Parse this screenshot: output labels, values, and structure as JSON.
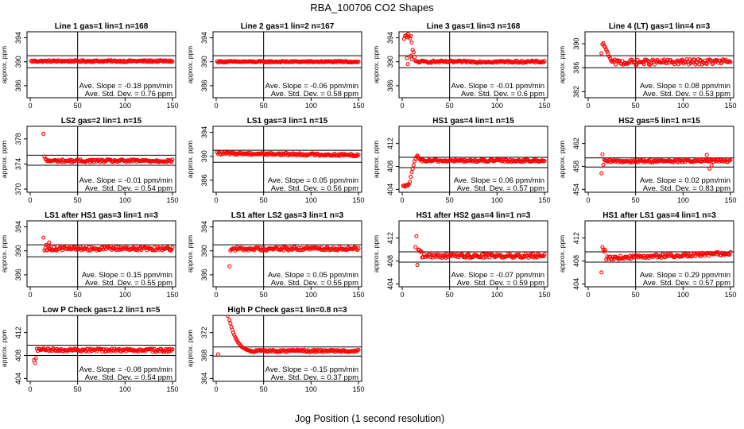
{
  "figure": {
    "title": "RBA_100706  CO2 Shapes",
    "xlabel": "Jog Position (1 second resolution)"
  },
  "chart_data": [
    {
      "type": "scatter",
      "title": "Line 1 gas=1 lin=1 n=168",
      "ylabel": "approx. ppm",
      "xlim": [
        0,
        150
      ],
      "ylim": [
        384,
        395
      ],
      "xticks": [
        0,
        50,
        100,
        150
      ],
      "yticks": [
        386,
        390,
        394
      ],
      "vline": 50,
      "hlines": [
        391,
        389
      ],
      "slope_text": "Ave. Slope = -0.18 ppm/min",
      "sd_text": "Ave. Std. Dev. = 0.76 ppm",
      "series": [
        {
          "segments": [
            {
              "x0": 1,
              "x1": 150,
              "y0": 390.1,
              "y1": 390.1,
              "noise": 0.15
            }
          ]
        }
      ]
    },
    {
      "type": "scatter",
      "title": "Line 2 gas=1 lin=2 n=167",
      "ylabel": "approx. ppm",
      "xlim": [
        0,
        150
      ],
      "ylim": [
        384,
        395
      ],
      "xticks": [
        0,
        50,
        100,
        150
      ],
      "yticks": [
        386,
        390,
        394
      ],
      "vline": 50,
      "hlines": [
        391,
        389
      ],
      "slope_text": "Ave. Slope = -0.06 ppm/min",
      "sd_text": "Ave. Std. Dev. = 0.58 ppm",
      "series": [
        {
          "segments": [
            {
              "x0": 1,
              "x1": 150,
              "y0": 390.0,
              "y1": 390.0,
              "noise": 0.12
            }
          ]
        }
      ]
    },
    {
      "type": "scatter",
      "title": "Line 3 gas=1 lin=3 n=168",
      "ylabel": "approx. ppm",
      "xlim": [
        0,
        150
      ],
      "ylim": [
        384,
        395
      ],
      "xticks": [
        0,
        50,
        100,
        150
      ],
      "yticks": [
        386,
        390,
        394
      ],
      "vline": 50,
      "hlines": [
        391,
        389
      ],
      "slope_text": "Ave. Slope = -0.01 ppm/min",
      "sd_text": "Ave. Std. Dev. = 0.6 ppm",
      "series": [
        {
          "points": [
            [
              2,
              393.8
            ],
            [
              3,
              394.3
            ],
            [
              4,
              394.4
            ],
            [
              5,
              394.1
            ],
            [
              6,
              394.6
            ],
            [
              7,
              394.2
            ],
            [
              8,
              393.9
            ],
            [
              9,
              394.3
            ],
            [
              10,
              393.2
            ],
            [
              11,
              392.0
            ],
            [
              5,
              390.6
            ],
            [
              6,
              389.6
            ],
            [
              9,
              391.0
            ],
            [
              10,
              390.4
            ],
            [
              12,
              391.6
            ],
            [
              13,
              390.8
            ]
          ],
          "segments": [
            {
              "x0": 14,
              "x1": 150,
              "y0": 390.0,
              "y1": 390.0,
              "noise": 0.18
            }
          ]
        }
      ]
    },
    {
      "type": "scatter",
      "title": "Line 4 (LT) gas=1 lin=4 n=3",
      "ylabel": "approx. ppm",
      "xlim": [
        0,
        150
      ],
      "ylim": [
        381,
        392
      ],
      "xticks": [
        0,
        50,
        100,
        150
      ],
      "yticks": [
        382,
        386,
        390
      ],
      "vline": 50,
      "hlines": [
        388,
        386
      ],
      "slope_text": "Ave. Slope = 0.08 ppm/min",
      "sd_text": "Ave. Std. Dev. = 0.53 ppm",
      "series": [
        {
          "points": [
            [
              14,
              388.4
            ],
            [
              15,
              389.9
            ],
            [
              16,
              390.1
            ],
            [
              17,
              389.6
            ],
            [
              18,
              389.4
            ],
            [
              19,
              389.0
            ],
            [
              20,
              388.7
            ],
            [
              21,
              388.3
            ],
            [
              22,
              387.9
            ],
            [
              23,
              387.6
            ],
            [
              24,
              387.2
            ],
            [
              25,
              387.0
            ]
          ],
          "segments": [
            {
              "x0": 26,
              "x1": 150,
              "y0": 386.9,
              "y1": 387.0,
              "noise": 0.45
            }
          ]
        }
      ]
    },
    {
      "type": "scatter",
      "title": "LS2 gas=2 lin=1 n=15",
      "ylabel": "approx. ppm",
      "xlim": [
        0,
        150
      ],
      "ylim": [
        369.5,
        380
      ],
      "xticks": [
        0,
        50,
        100,
        150
      ],
      "yticks": [
        370,
        374,
        378
      ],
      "vline": 50,
      "hlines": [
        375.4,
        373.8
      ],
      "slope_text": "Ave. Slope = -0.01 ppm/min",
      "sd_text": "Ave. Std. Dev. = 0.54 ppm",
      "series": [
        {
          "points": [
            [
              14,
              378.8
            ],
            [
              15,
              375.2
            ],
            [
              16,
              374.8
            ]
          ],
          "segments": [
            {
              "x0": 17,
              "x1": 150,
              "y0": 374.5,
              "y1": 374.5,
              "noise": 0.22
            }
          ]
        }
      ]
    },
    {
      "type": "scatter",
      "title": "LS1 gas=3 lin=1 n=15",
      "ylabel": "approx. ppm",
      "xlim": [
        0,
        150
      ],
      "ylim": [
        384,
        395
      ],
      "xticks": [
        0,
        50,
        100,
        150
      ],
      "yticks": [
        386,
        390,
        394
      ],
      "vline": 50,
      "hlines": [
        391,
        389
      ],
      "slope_text": "Ave. Slope = 0.05 ppm/min",
      "sd_text": "Ave. Std. Dev. = 0.56 ppm",
      "series": [
        {
          "segments": [
            {
              "x0": 1,
              "x1": 150,
              "y0": 390.5,
              "y1": 390.2,
              "noise": 0.2
            }
          ]
        }
      ]
    },
    {
      "type": "scatter",
      "title": "HS1 gas=4 lin=1 n=15",
      "ylabel": "approx. ppm",
      "xlim": [
        0,
        150
      ],
      "ylim": [
        403.5,
        415
      ],
      "xticks": [
        0,
        50,
        100,
        150
      ],
      "yticks": [
        404,
        408,
        412
      ],
      "vline": 50,
      "hlines": [
        409.6,
        407.8
      ],
      "slope_text": "Ave. Slope = 0.06 ppm/min",
      "sd_text": "Ave. Std. Dev. = 0.57 ppm",
      "series": [
        {
          "points": [
            [
              1,
              404.6
            ],
            [
              2,
              404.7
            ],
            [
              3,
              404.5
            ],
            [
              4,
              404.6
            ],
            [
              5,
              404.8
            ],
            [
              6,
              404.7
            ],
            [
              7,
              404.9
            ],
            [
              8,
              405.3
            ],
            [
              9,
              406.2
            ],
            [
              10,
              407.0
            ],
            [
              11,
              407.6
            ],
            [
              12,
              408.2
            ],
            [
              13,
              408.9
            ],
            [
              14,
              409.3
            ],
            [
              15,
              409.7
            ],
            [
              16,
              409.9
            ],
            [
              17,
              409.6
            ],
            [
              18,
              409.4
            ]
          ],
          "segments": [
            {
              "x0": 19,
              "x1": 150,
              "y0": 409.0,
              "y1": 409.0,
              "noise": 0.2
            }
          ]
        }
      ]
    },
    {
      "type": "scatter",
      "title": "HS2 gas=5 lin=1 n=15",
      "ylabel": "approx. ppm",
      "xlim": [
        0,
        150
      ],
      "ylim": [
        453.5,
        465
      ],
      "xticks": [
        0,
        50,
        100,
        150
      ],
      "yticks": [
        454,
        458,
        462
      ],
      "vline": 50,
      "hlines": [
        459.5,
        457.9
      ],
      "slope_text": "Ave. Slope = 0.02 ppm/min",
      "sd_text": "Ave. Std. Dev. = 0.83 ppm",
      "series": [
        {
          "points": [
            [
              14,
              456.8
            ],
            [
              15,
              460.1
            ],
            [
              16,
              458.3
            ],
            [
              125,
              460.0
            ],
            [
              128,
              457.6
            ],
            [
              130,
              458.2
            ]
          ],
          "segments": [
            {
              "x0": 17,
              "x1": 150,
              "y0": 458.9,
              "y1": 459.0,
              "noise": 0.25
            }
          ]
        }
      ]
    },
    {
      "type": "scatter",
      "title": "LS1 after HS1 gas=3 lin=1 n=3",
      "ylabel": "approx. ppm",
      "xlim": [
        0,
        150
      ],
      "ylim": [
        384,
        395
      ],
      "xticks": [
        0,
        50,
        100,
        150
      ],
      "yticks": [
        386,
        390,
        394
      ],
      "vline": 50,
      "hlines": [
        391,
        389
      ],
      "slope_text": "Ave. Slope = 0.15 ppm/min",
      "sd_text": "Ave. Std. Dev. = 0.55 ppm",
      "series": [
        {
          "points": [
            [
              14,
              392.2
            ],
            [
              17,
              391.0
            ],
            [
              20,
              391.4
            ]
          ],
          "segments": [
            {
              "x0": 15,
              "x1": 150,
              "y0": 390.4,
              "y1": 390.4,
              "noise": 0.35
            }
          ]
        }
      ]
    },
    {
      "type": "scatter",
      "title": "LS1 after LS2 gas=3 lin=1 n=3",
      "ylabel": "approx. ppm",
      "xlim": [
        0,
        150
      ],
      "ylim": [
        384,
        395
      ],
      "xticks": [
        0,
        50,
        100,
        150
      ],
      "yticks": [
        386,
        390,
        394
      ],
      "vline": 50,
      "hlines": [
        391,
        389
      ],
      "slope_text": "Ave. Slope = 0.05 ppm/min",
      "sd_text": "Ave. Std. Dev. = 0.55 ppm",
      "series": [
        {
          "points": [
            [
              14,
              387.4
            ]
          ],
          "segments": [
            {
              "x0": 15,
              "x1": 150,
              "y0": 390.3,
              "y1": 390.4,
              "noise": 0.3
            }
          ]
        }
      ]
    },
    {
      "type": "scatter",
      "title": "HS1 after HS2 gas=4 lin=1 n=3",
      "ylabel": "approx. ppm",
      "xlim": [
        0,
        150
      ],
      "ylim": [
        403.5,
        415
      ],
      "xticks": [
        0,
        50,
        100,
        150
      ],
      "yticks": [
        404,
        408,
        412
      ],
      "vline": 50,
      "hlines": [
        409.6,
        407.8
      ],
      "slope_text": "Ave. Slope = -0.07 ppm/min",
      "sd_text": "Ave. Std. Dev. = 0.59 ppm",
      "series": [
        {
          "points": [
            [
              14,
              410.4
            ],
            [
              15,
              412.3
            ],
            [
              16,
              407.3
            ],
            [
              17,
              410.0
            ],
            [
              18,
              409.9
            ],
            [
              19,
              409.6
            ],
            [
              20,
              409.7
            ]
          ],
          "segments": [
            {
              "x0": 21,
              "x1": 150,
              "y0": 408.9,
              "y1": 408.9,
              "noise": 0.35
            }
          ]
        }
      ]
    },
    {
      "type": "scatter",
      "title": "HS1 after LS1 gas=4 lin=1 n=3",
      "ylabel": "approx. ppm",
      "xlim": [
        0,
        150
      ],
      "ylim": [
        403.5,
        415
      ],
      "xticks": [
        0,
        50,
        100,
        150
      ],
      "yticks": [
        404,
        408,
        412
      ],
      "vline": 50,
      "hlines": [
        409.6,
        407.8
      ],
      "slope_text": "Ave. Slope = 0.29 ppm/min",
      "sd_text": "Ave. Std. Dev. = 0.57 ppm",
      "series": [
        {
          "points": [
            [
              14,
              406.0
            ],
            [
              15,
              410.4
            ],
            [
              16,
              410.0
            ],
            [
              17,
              409.6
            ],
            [
              18,
              409.9
            ]
          ],
          "segments": [
            {
              "x0": 19,
              "x1": 150,
              "y0": 408.5,
              "y1": 409.3,
              "noise": 0.3
            }
          ]
        }
      ]
    },
    {
      "type": "scatter",
      "title": "Low P Check gas=1.2 lin=1 n=5",
      "ylabel": "approx. ppm",
      "xlim": [
        0,
        150
      ],
      "ylim": [
        403.5,
        415
      ],
      "xticks": [
        0,
        50,
        100,
        150
      ],
      "yticks": [
        404,
        408,
        412
      ],
      "vline": 50,
      "hlines": [
        409.8,
        408.0
      ],
      "slope_text": "Ave. Slope = -0.08 ppm/min",
      "sd_text": "Ave. Std. Dev. = 0.54 ppm",
      "series": [
        {
          "points": [
            [
              4,
              407.2
            ],
            [
              5,
              406.7
            ],
            [
              6,
              407.5
            ],
            [
              7,
              409.2
            ]
          ],
          "segments": [
            {
              "x0": 8,
              "x1": 150,
              "y0": 409.0,
              "y1": 408.9,
              "noise": 0.28
            }
          ]
        }
      ]
    },
    {
      "type": "scatter",
      "title": "High P Check gas=1 lin=0.8 n=3",
      "ylabel": "approx. ppm",
      "xlim": [
        0,
        150
      ],
      "ylim": [
        363.5,
        375
      ],
      "xticks": [
        0,
        50,
        100,
        150
      ],
      "yticks": [
        364,
        368,
        372
      ],
      "vline": 50,
      "hlines": [
        369.5,
        367.9
      ],
      "slope_text": "Ave. Slope = -0.15 ppm/min",
      "sd_text": "Ave. Std. Dev. = 0.37 ppm",
      "series": [
        {
          "points": [
            [
              2,
              368.2
            ],
            [
              12,
              374.9
            ],
            [
              14,
              374.2
            ],
            [
              15,
              373.6
            ],
            [
              16,
              373.0
            ],
            [
              17,
              372.5
            ],
            [
              18,
              372.0
            ],
            [
              19,
              371.6
            ],
            [
              20,
              371.2
            ],
            [
              21,
              370.9
            ],
            [
              22,
              370.6
            ],
            [
              23,
              370.3
            ],
            [
              24,
              370.1
            ],
            [
              25,
              369.9
            ],
            [
              26,
              369.7
            ],
            [
              27,
              369.5
            ],
            [
              28,
              369.4
            ],
            [
              29,
              369.3
            ],
            [
              30,
              369.2
            ],
            [
              31,
              369.1
            ],
            [
              32,
              369.0
            ],
            [
              33,
              369.0
            ],
            [
              34,
              368.9
            ],
            [
              35,
              368.9
            ]
          ],
          "segments": [
            {
              "x0": 36,
              "x1": 150,
              "y0": 368.8,
              "y1": 368.8,
              "noise": 0.2
            }
          ]
        }
      ]
    }
  ]
}
